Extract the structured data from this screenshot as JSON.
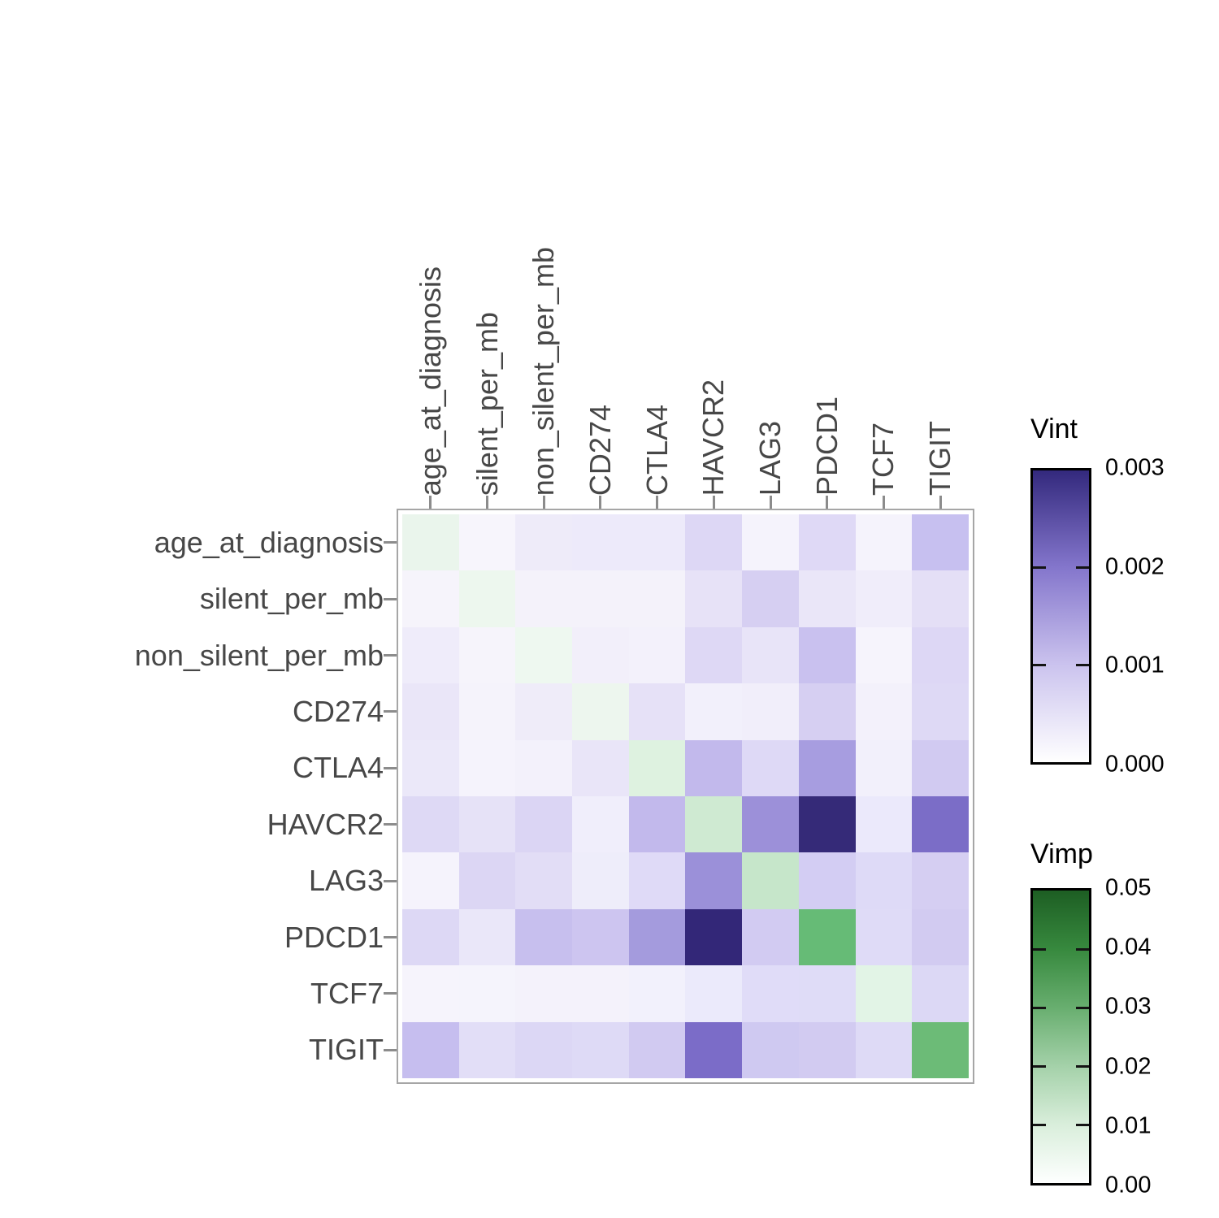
{
  "figure": {
    "background": "#ffffff",
    "axis_text_color": "#474747",
    "tick_color": "#8c8c8c",
    "panel_border_color": "#a6a6a6"
  },
  "chart_data": {
    "type": "heatmap",
    "description": "Variable importance (Vimp, green diagonal) and pairwise variable interaction (Vint, purple off-diagonal) matrix",
    "variables": [
      "age_at_diagnosis",
      "silent_per_mb",
      "non_silent_per_mb",
      "CD274",
      "CTLA4",
      "HAVCR2",
      "LAG3",
      "PDCD1",
      "TCF7",
      "TIGIT"
    ],
    "x_categories": [
      "age_at_diagnosis",
      "silent_per_mb",
      "non_silent_per_mb",
      "CD274",
      "CTLA4",
      "HAVCR2",
      "LAG3",
      "PDCD1",
      "TCF7",
      "TIGIT"
    ],
    "y_categories": [
      "age_at_diagnosis",
      "silent_per_mb",
      "non_silent_per_mb",
      "CD274",
      "CTLA4",
      "HAVCR2",
      "LAG3",
      "PDCD1",
      "TCF7",
      "TIGIT"
    ],
    "cell_colors": [
      [
        "#eaf5ec",
        "#f7f5fc",
        "#eeebf9",
        "#edeafa",
        "#edeafa",
        "#ddd7f5",
        "#f5f3fc",
        "#dfd9f6",
        "#f5f3fc",
        "#c7c0f0"
      ],
      [
        "#f6f4fb",
        "#edf7ee",
        "#f4f2fa",
        "#f4f2fa",
        "#f4f2fa",
        "#e7e2f7",
        "#d6cff2",
        "#eae6f8",
        "#f0edfa",
        "#e4dff6"
      ],
      [
        "#efecfa",
        "#f6f4fb",
        "#eef8f0",
        "#f2effa",
        "#f3f1fb",
        "#ded8f5",
        "#e8e4f8",
        "#c9c1ef",
        "#f6f4fc",
        "#ddd7f5"
      ],
      [
        "#eae6f8",
        "#f5f3fb",
        "#efecf9",
        "#edf6ee",
        "#e6e1f7",
        "#f2f0fb",
        "#f1eefa",
        "#d6cff2",
        "#f3f1fb",
        "#ded9f5"
      ],
      [
        "#ebe8f9",
        "#f5f3fc",
        "#f3f1fb",
        "#e9e5f8",
        "#def2e0",
        "#c2b9ec",
        "#ded9f6",
        "#a79de0",
        "#f2f0fb",
        "#d1caf1"
      ],
      [
        "#ded9f5",
        "#e6e2f7",
        "#dbd5f4",
        "#f0eefb",
        "#c2b9ec",
        "#cfead2",
        "#9c90d9",
        "#352a78",
        "#ebe9fb",
        "#7b6dc7"
      ],
      [
        "#f5f3fc",
        "#dcd6f4",
        "#e2ddf6",
        "#eeedfa",
        "#dfdaf7",
        "#9b90d9",
        "#c6e6ca",
        "#d3cdf3",
        "#dedaf7",
        "#d5cef2"
      ],
      [
        "#ddd8f5",
        "#eae7f9",
        "#c7bfee",
        "#cdc5f0",
        "#a49bdd",
        "#332778",
        "#d2cbf2",
        "#66bb76",
        "#dfdbf7",
        "#d2cbf1"
      ],
      [
        "#f6f4fc",
        "#f5f4fc",
        "#f4f2fb",
        "#f4f2fb",
        "#f2f1fc",
        "#ebeafb",
        "#e0dcf8",
        "#dfdcf7",
        "#e2f4e6",
        "#dcd8f5"
      ],
      [
        "#c6beef",
        "#e2def7",
        "#dcd7f5",
        "#dedaf6",
        "#d1caf1",
        "#7b6cc8",
        "#cfc9f1",
        "#d2cbf1",
        "#dedaf6",
        "#6cbb77"
      ]
    ],
    "vint_matrix": [
      [
        null,
        0.0001,
        0.0003,
        0.0003,
        0.0003,
        0.0007,
        0.0001,
        0.0006,
        0.0001,
        0.0011
      ],
      [
        0.0001,
        null,
        0.0002,
        0.0002,
        0.0002,
        0.0005,
        0.0008,
        0.0004,
        0.0003,
        0.0005
      ],
      [
        0.0003,
        0.0001,
        null,
        0.0002,
        0.0002,
        0.0007,
        0.0004,
        0.001,
        0.0001,
        0.0007
      ],
      [
        0.0004,
        0.0001,
        0.0003,
        null,
        0.0005,
        0.0002,
        0.0003,
        0.0008,
        0.0002,
        0.0006
      ],
      [
        0.0004,
        0.0001,
        0.0002,
        0.0004,
        null,
        0.0012,
        0.0006,
        0.0016,
        0.0002,
        0.0009
      ],
      [
        0.0006,
        0.0005,
        0.0007,
        0.0003,
        0.0012,
        null,
        0.0018,
        0.0029,
        0.0003,
        0.0021
      ],
      [
        0.0001,
        0.0007,
        0.0006,
        0.0003,
        0.0006,
        0.0017,
        null,
        0.0009,
        0.0006,
        0.0008
      ],
      [
        0.0007,
        0.0004,
        0.0011,
        0.001,
        0.0016,
        0.0029,
        0.0009,
        null,
        0.0007,
        0.0009
      ],
      [
        0.0001,
        0.0001,
        0.0002,
        0.0002,
        0.0002,
        0.0003,
        0.0006,
        0.0006,
        null,
        0.0007
      ],
      [
        0.0011,
        0.0005,
        0.0007,
        0.0007,
        0.0009,
        0.0021,
        0.0009,
        0.0009,
        0.0006,
        null
      ]
    ],
    "vimp_diagonal": [
      0.003,
      0.002,
      0.002,
      0.002,
      0.006,
      0.01,
      0.012,
      0.03,
      0.005,
      0.03
    ],
    "legends": [
      {
        "title": "Vint",
        "range": [
          0.0,
          0.003
        ],
        "tick_labels": [
          "0.003",
          "0.002",
          "0.001",
          "0.000"
        ],
        "low_color": "#ffffff",
        "high_color": "#33297d",
        "gradient_stops": [
          {
            "color": "#33297d",
            "pos": "0%"
          },
          {
            "color": "#8476cc",
            "pos": "33.3%"
          },
          {
            "color": "#cbc3ee",
            "pos": "66.7%"
          },
          {
            "color": "#ffffff",
            "pos": "100%"
          }
        ]
      },
      {
        "title": "Vimp",
        "range": [
          0.0,
          0.05
        ],
        "tick_labels": [
          "0.05",
          "0.04",
          "0.03",
          "0.02",
          "0.01",
          "0.00"
        ],
        "low_color": "#ffffff",
        "high_color": "#1d5e23",
        "gradient_stops": [
          {
            "color": "#1d5e23",
            "pos": "0%"
          },
          {
            "color": "#37893e",
            "pos": "20%"
          },
          {
            "color": "#68ae6f",
            "pos": "40%"
          },
          {
            "color": "#a4d1a9",
            "pos": "60%"
          },
          {
            "color": "#d9eedb",
            "pos": "80%"
          },
          {
            "color": "#feffff",
            "pos": "100%"
          }
        ]
      }
    ]
  }
}
